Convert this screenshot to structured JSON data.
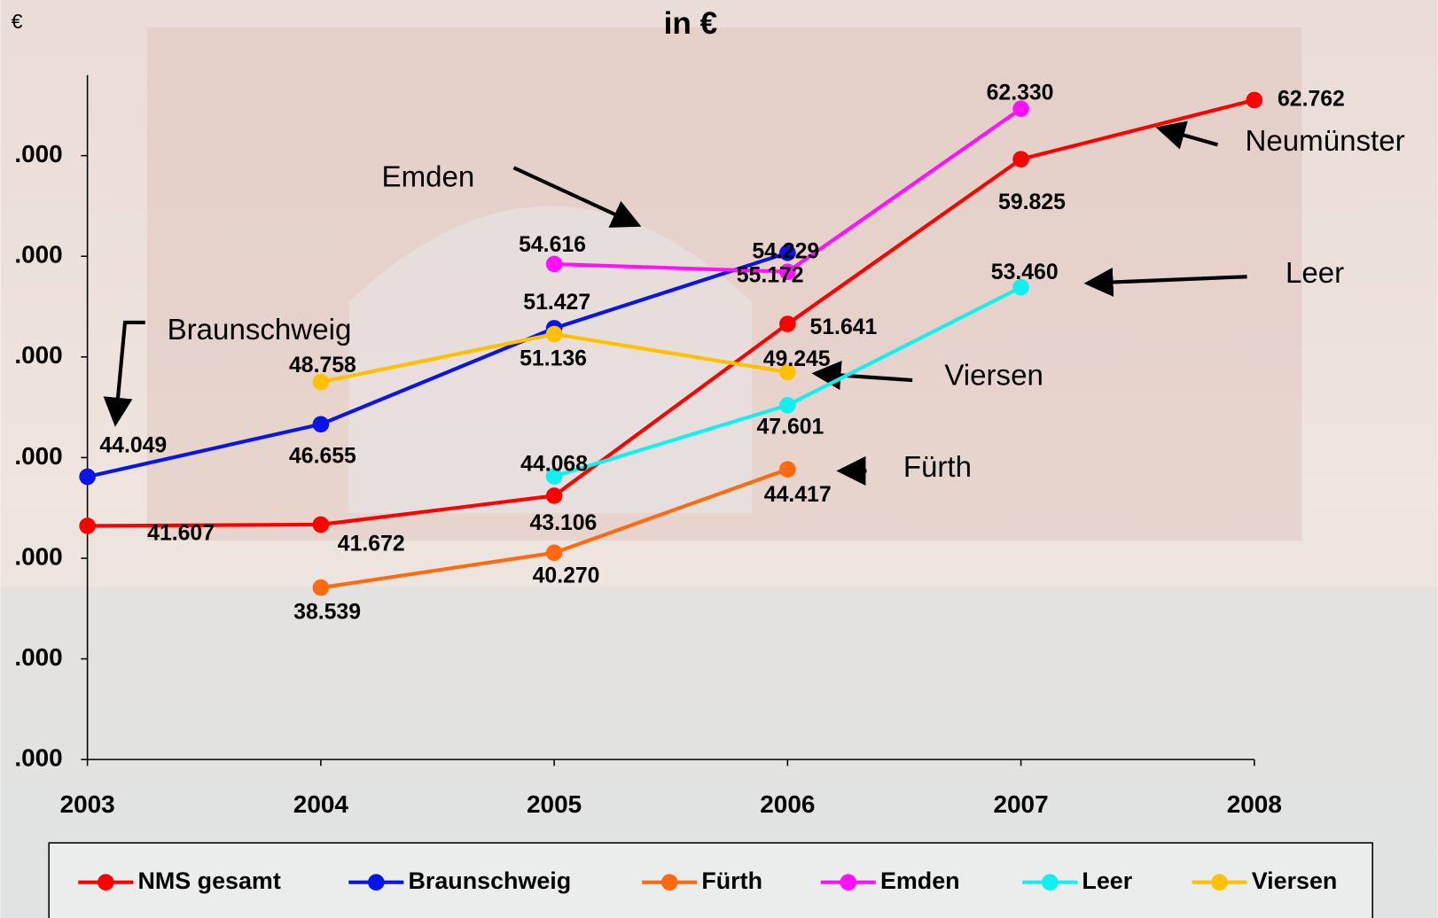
{
  "chart_data": {
    "type": "line",
    "title": "in €",
    "y_label": "€",
    "categories": [
      "2003",
      "2004",
      "2005",
      "2006",
      "2007",
      "2008"
    ],
    "ylim": [
      30000,
      64000
    ],
    "yticks": [
      {
        "value": 30000,
        "label": ".000"
      },
      {
        "value": 35000,
        "label": ".000"
      },
      {
        "value": 40000,
        "label": ".000"
      },
      {
        "value": 45000,
        "label": ".000"
      },
      {
        "value": 50000,
        "label": ".000"
      },
      {
        "value": 55000,
        "label": ".000"
      },
      {
        "value": 60000,
        "label": ".000"
      }
    ],
    "series": [
      {
        "name": "NMS gesamt",
        "color": "#ff0000",
        "values": [
          41607,
          41672,
          43106,
          51641,
          59825,
          62762
        ],
        "value_labels": [
          "41.607",
          "41.672",
          "43.106",
          "51.641",
          "59.825",
          "62.762"
        ]
      },
      {
        "name": "Braunschweig",
        "color": "#0a14e6",
        "values": [
          44049,
          46655,
          51427,
          55172,
          null,
          null
        ],
        "value_labels": [
          "44.049",
          "46.655",
          "51.427",
          "55.172",
          null,
          null
        ]
      },
      {
        "name": "Fürth",
        "color": "#ff6a10",
        "values": [
          null,
          38539,
          40270,
          44417,
          null,
          null
        ],
        "value_labels": [
          null,
          "38.539",
          "40.270",
          "44.417",
          null,
          null
        ]
      },
      {
        "name": "Emden",
        "color": "#ff10ff",
        "values": [
          null,
          null,
          54616,
          54229,
          62330,
          null
        ],
        "value_labels": [
          null,
          null,
          "54.616",
          "54.229",
          "62.330",
          null
        ]
      },
      {
        "name": "Leer",
        "color": "#10f0f0",
        "values": [
          null,
          null,
          44068,
          47601,
          53460,
          null
        ],
        "value_labels": [
          null,
          null,
          "44.068",
          "47.601",
          "53.460",
          null
        ]
      },
      {
        "name": "Viersen",
        "color": "#ffc000",
        "values": [
          null,
          48758,
          51136,
          49245,
          null,
          null
        ],
        "value_labels": [
          null,
          "48.758",
          "51.136",
          "49.245",
          null,
          null
        ]
      }
    ],
    "annotations": [
      "Emden",
      "Neumünster",
      "Leer",
      "Braunschweig",
      "Viersen",
      "Fürth"
    ]
  }
}
